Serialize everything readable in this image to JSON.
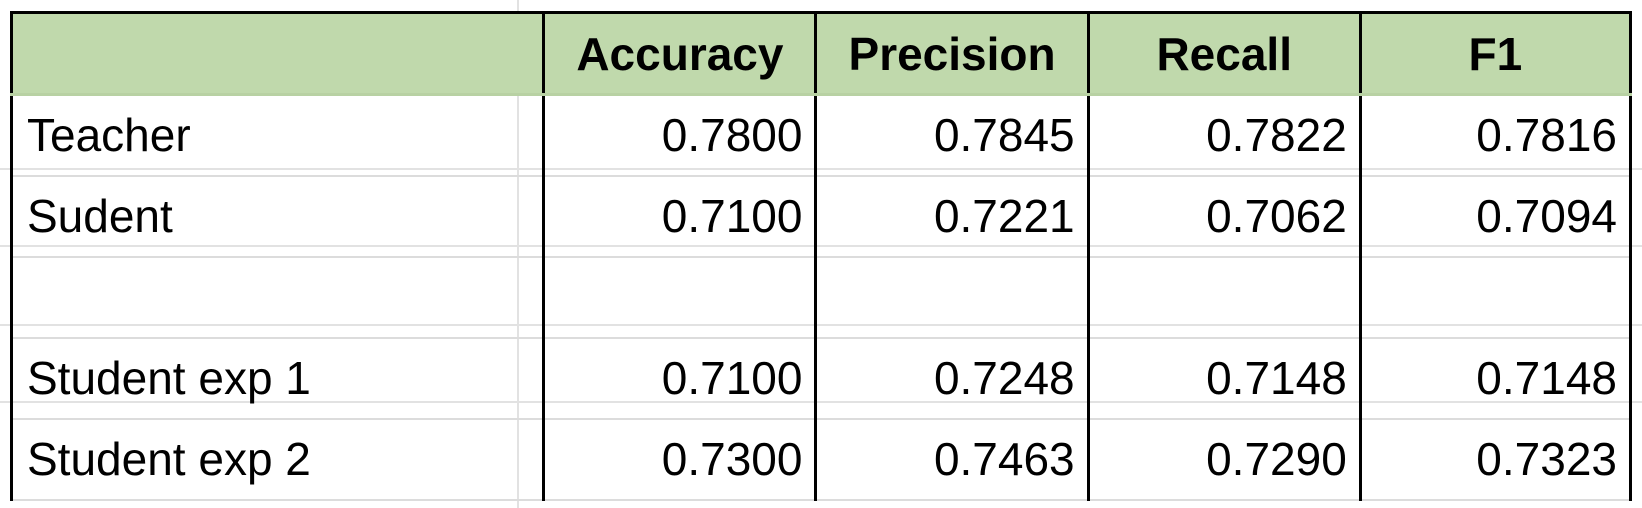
{
  "table": {
    "columns": [
      "",
      "Accuracy",
      "Precision",
      "Recall",
      "F1"
    ],
    "rows": [
      {
        "label": "Teacher",
        "accuracy": "0.7800",
        "precision": "0.7845",
        "recall": "0.7822",
        "f1": "0.7816"
      },
      {
        "label": "Sudent",
        "accuracy": "0.7100",
        "precision": "0.7221",
        "recall": "0.7062",
        "f1": "0.7094"
      },
      {
        "label": "",
        "accuracy": "",
        "precision": "",
        "recall": "",
        "f1": ""
      },
      {
        "label": "Student exp 1",
        "accuracy": "0.7100",
        "precision": "0.7248",
        "recall": "0.7148",
        "f1": "0.7148"
      },
      {
        "label": "Student exp 2",
        "accuracy": "0.7300",
        "precision": "0.7463",
        "recall": "0.7290",
        "f1": "0.7323"
      }
    ]
  },
  "colors": {
    "header_background": "#c0d9ac",
    "border": "#000000",
    "gridline": "#e2e2e2"
  }
}
